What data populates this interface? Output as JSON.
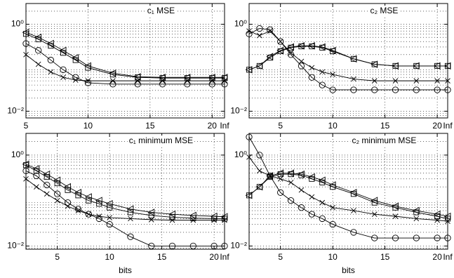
{
  "chart_data": [
    {
      "type": "line",
      "title": "c₁ MSE",
      "log_y": true,
      "grid": true,
      "x": [
        5,
        6,
        7,
        8,
        9,
        10,
        12,
        14,
        16,
        18,
        20,
        21
      ],
      "xlim": [
        5,
        21
      ],
      "xticks": [
        5,
        10,
        15,
        20,
        {
          "value": 21,
          "label": "Inf"
        }
      ],
      "ylim": [
        0.007,
        3
      ],
      "yticks": [
        {
          "value": 0.01,
          "label": "10⁻²"
        },
        {
          "value": 1,
          "label": "10⁰"
        }
      ],
      "series": [
        {
          "color": "#000",
          "marker": "circle",
          "values": [
            0.36,
            0.25,
            0.15,
            0.09,
            0.06,
            0.045,
            0.042,
            0.042,
            0.042,
            0.042,
            0.042,
            0.042
          ]
        },
        {
          "color": "#000",
          "marker": "cross",
          "values": [
            0.2,
            0.12,
            0.08,
            0.06,
            0.052,
            0.05,
            0.05,
            0.05,
            0.05,
            0.05,
            0.05,
            0.05
          ]
        },
        {
          "color": "#000",
          "marker": "square",
          "values": [
            0.6,
            0.45,
            0.32,
            0.22,
            0.15,
            0.1,
            0.07,
            0.06,
            0.058,
            0.058,
            0.058,
            0.058
          ]
        },
        {
          "color": "#000",
          "marker": "triangle",
          "values": [
            0.65,
            0.5,
            0.36,
            0.25,
            0.17,
            0.11,
            0.075,
            0.062,
            0.06,
            0.06,
            0.06,
            0.06
          ]
        }
      ]
    },
    {
      "type": "line",
      "title": "c₂ MSE",
      "log_y": true,
      "grid": true,
      "x": [
        2,
        3,
        4,
        5,
        6,
        7,
        8,
        9,
        10,
        12,
        14,
        16,
        18,
        20,
        21
      ],
      "xlim": [
        2,
        21
      ],
      "xticks": [
        5,
        10,
        15,
        20,
        {
          "value": 21,
          "label": "Inf"
        }
      ],
      "ylim": [
        0.007,
        3
      ],
      "yticks": [
        {
          "value": 0.01,
          "label": "10⁻²"
        },
        {
          "value": 1,
          "label": "10⁰"
        }
      ],
      "series": [
        {
          "color": "#000",
          "marker": "circle",
          "values": [
            0.6,
            0.8,
            0.75,
            0.4,
            0.2,
            0.11,
            0.06,
            0.04,
            0.031,
            0.031,
            0.031,
            0.031,
            0.031,
            0.031,
            0.031
          ]
        },
        {
          "color": "#000",
          "marker": "cross",
          "values": [
            0.7,
            0.55,
            0.7,
            0.4,
            0.22,
            0.14,
            0.1,
            0.08,
            0.07,
            0.055,
            0.05,
            0.05,
            0.05,
            0.05,
            0.05
          ]
        },
        {
          "color": "#000",
          "marker": "square",
          "values": [
            0.09,
            0.11,
            0.17,
            0.24,
            0.29,
            0.31,
            0.31,
            0.29,
            0.24,
            0.16,
            0.12,
            0.11,
            0.11,
            0.11,
            0.11
          ]
        },
        {
          "color": "#000",
          "marker": "triangle",
          "values": [
            0.09,
            0.11,
            0.18,
            0.25,
            0.3,
            0.32,
            0.32,
            0.3,
            0.25,
            0.16,
            0.12,
            0.11,
            0.11,
            0.11,
            0.11
          ]
        }
      ]
    },
    {
      "type": "line",
      "title": "c₁ minimum MSE",
      "xlabel": "bits",
      "log_y": true,
      "grid": true,
      "x": [
        2,
        3,
        4,
        5,
        6,
        7,
        8,
        9,
        10,
        12,
        14,
        16,
        18,
        20,
        21
      ],
      "xlim": [
        2,
        21
      ],
      "xticks": [
        5,
        10,
        15,
        20,
        {
          "value": 21,
          "label": "Inf"
        }
      ],
      "ylim": [
        0.0085,
        3
      ],
      "yticks": [
        {
          "value": 0.01,
          "label": "10⁻²"
        },
        {
          "value": 1,
          "label": "10⁰"
        }
      ],
      "series": [
        {
          "color": "#000",
          "marker": "circle",
          "values": [
            0.45,
            0.35,
            0.22,
            0.14,
            0.09,
            0.065,
            0.05,
            0.04,
            0.03,
            0.016,
            0.01,
            0.01,
            0.01,
            0.01,
            0.01
          ]
        },
        {
          "color": "#000",
          "marker": "cross",
          "values": [
            0.3,
            0.2,
            0.14,
            0.1,
            0.075,
            0.06,
            0.05,
            0.045,
            0.042,
            0.04,
            0.038,
            0.037,
            0.037,
            0.037,
            0.037
          ]
        },
        {
          "color": "#000",
          "marker": "square",
          "values": [
            0.6,
            0.45,
            0.33,
            0.24,
            0.17,
            0.13,
            0.1,
            0.085,
            0.07,
            0.055,
            0.047,
            0.043,
            0.041,
            0.04,
            0.04
          ]
        },
        {
          "color": "#000",
          "marker": "triangle",
          "values": [
            0.63,
            0.5,
            0.38,
            0.28,
            0.2,
            0.15,
            0.12,
            0.1,
            0.085,
            0.065,
            0.055,
            0.05,
            0.047,
            0.045,
            0.044
          ]
        }
      ]
    },
    {
      "type": "line",
      "title": "c₂ minimum MSE",
      "xlabel": "bits",
      "log_y": true,
      "grid": true,
      "x": [
        2,
        3,
        4,
        5,
        6,
        7,
        8,
        9,
        10,
        12,
        14,
        16,
        18,
        20,
        21
      ],
      "xlim": [
        2,
        21
      ],
      "xticks": [
        5,
        10,
        15,
        20,
        {
          "value": 21,
          "label": "Inf"
        }
      ],
      "ylim": [
        0.0085,
        3
      ],
      "yticks": [
        {
          "value": 0.01,
          "label": "10⁻²"
        },
        {
          "value": 1,
          "label": "10⁰"
        }
      ],
      "series": [
        {
          "color": "#000",
          "marker": "circle",
          "values": [
            2.5,
            1.0,
            0.35,
            0.15,
            0.1,
            0.07,
            0.05,
            0.04,
            0.03,
            0.02,
            0.015,
            0.015,
            0.015,
            0.015,
            0.015
          ]
        },
        {
          "color": "#000",
          "marker": "cross",
          "values": [
            0.9,
            0.45,
            0.35,
            0.3,
            0.25,
            0.17,
            0.12,
            0.09,
            0.07,
            0.06,
            0.05,
            0.045,
            0.04,
            0.037,
            0.035
          ]
        },
        {
          "color": "#000",
          "marker": "square",
          "values": [
            0.13,
            0.2,
            0.33,
            0.38,
            0.38,
            0.36,
            0.3,
            0.25,
            0.2,
            0.14,
            0.09,
            0.07,
            0.055,
            0.045,
            0.04
          ]
        },
        {
          "color": "#000",
          "marker": "triangle",
          "values": [
            0.13,
            0.2,
            0.35,
            0.4,
            0.4,
            0.38,
            0.33,
            0.28,
            0.22,
            0.15,
            0.1,
            0.075,
            0.06,
            0.05,
            0.045
          ]
        }
      ]
    }
  ]
}
